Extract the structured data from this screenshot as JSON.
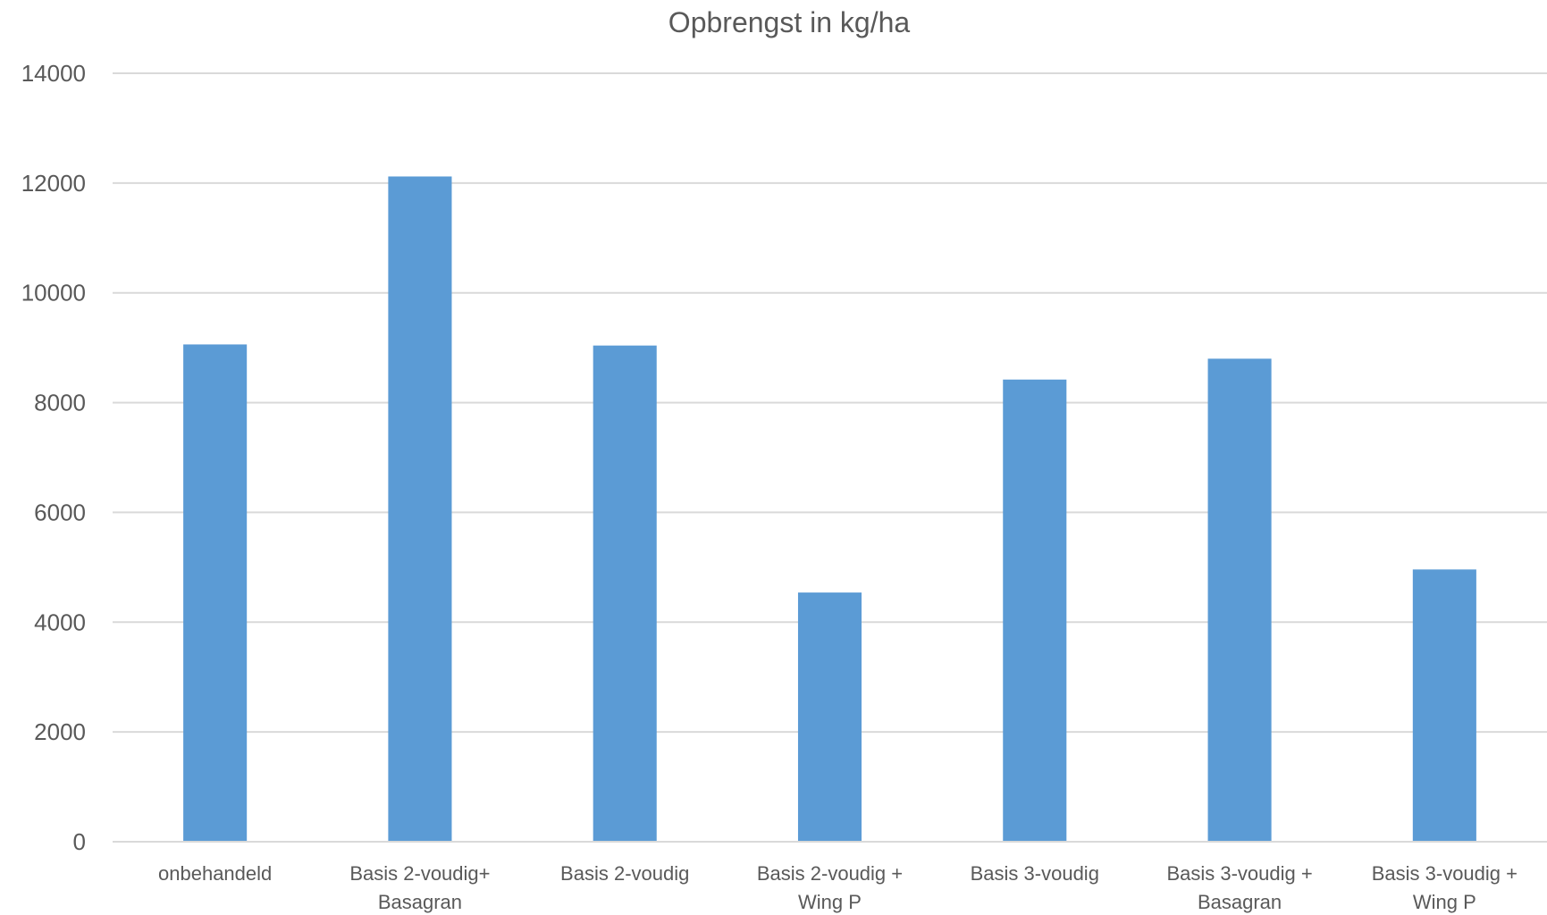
{
  "chart_data": {
    "type": "bar",
    "title": "Opbrengst in kg/ha",
    "xlabel": "",
    "ylabel": "",
    "ylim": [
      0,
      14000
    ],
    "yticks": [
      0,
      2000,
      4000,
      6000,
      8000,
      10000,
      12000,
      14000
    ],
    "grid": true,
    "legend": "none",
    "bar_color": "#5B9BD5",
    "categories": [
      [
        "onbehandeld"
      ],
      [
        "Basis 2-voudig+",
        "Basagran"
      ],
      [
        "Basis 2-voudig"
      ],
      [
        "Basis 2-voudig +",
        "Wing P"
      ],
      [
        "Basis 3-voudig"
      ],
      [
        "Basis 3-voudig +",
        "Basagran"
      ],
      [
        "Basis 3-voudig +",
        "Wing P"
      ]
    ],
    "values": [
      9060,
      12120,
      9040,
      4540,
      8420,
      8800,
      4960
    ]
  }
}
